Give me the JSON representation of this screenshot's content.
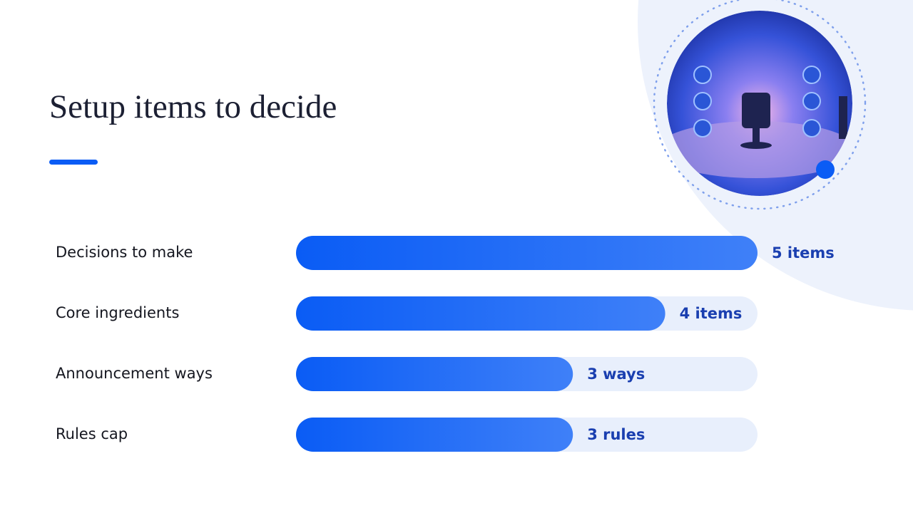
{
  "chart_data": {
    "type": "bar",
    "orientation": "horizontal",
    "title": "Setup items to decide",
    "categories": [
      "Decisions to make",
      "Core ingredients",
      "Announcement ways",
      "Rules cap"
    ],
    "values": [
      5,
      4,
      3,
      3
    ],
    "value_labels": [
      "5 items",
      "4 items",
      "3 ways",
      "3 rules"
    ],
    "color": "#0a5cf5",
    "xlim": [
      0,
      5
    ]
  }
}
